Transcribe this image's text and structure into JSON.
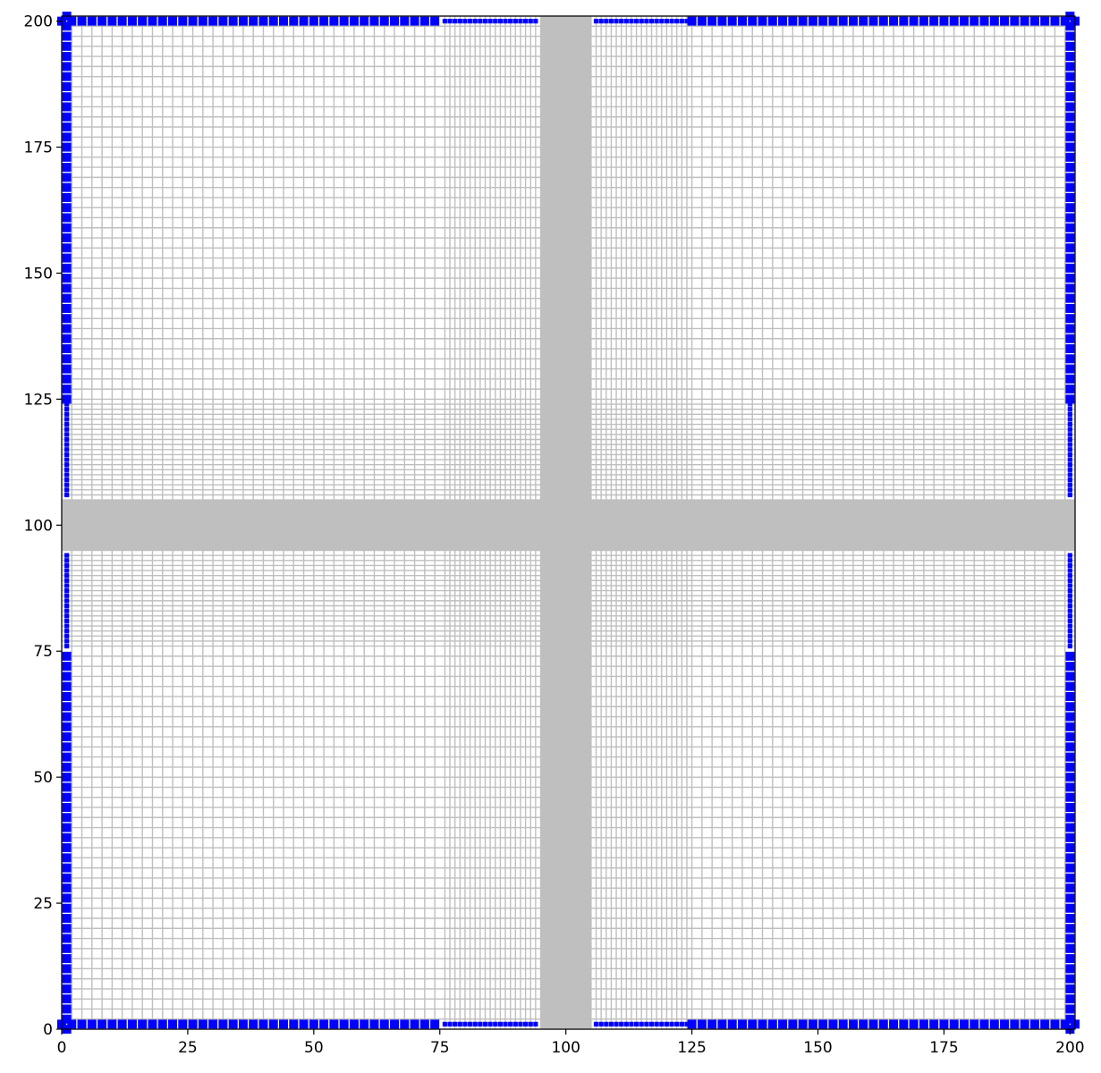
{
  "chart_data": {
    "type": "scatter",
    "title": "",
    "xlabel": "",
    "ylabel": "",
    "xlim": [
      0,
      201
    ],
    "ylim": [
      0,
      201
    ],
    "grid": false,
    "x_ticks": [
      "0",
      "25",
      "50",
      "75",
      "100",
      "125",
      "150",
      "175",
      "200"
    ],
    "y_ticks": [
      "0",
      "25",
      "50",
      "75",
      "100",
      "125",
      "150",
      "175",
      "200"
    ],
    "mesh": {
      "description_visible": "structured mesh of grey quadrilateral cells, refined near 75-125 in both directions",
      "cell_color": "#bfbfbf",
      "coarse_spacing": 2,
      "fine_spacing": 1,
      "refine_range": [
        75,
        125
      ],
      "solid_band_range": [
        95,
        105
      ]
    },
    "boundary_nodes": {
      "color": "#0000ff",
      "edges": [
        "left",
        "right",
        "top",
        "bottom"
      ]
    }
  }
}
